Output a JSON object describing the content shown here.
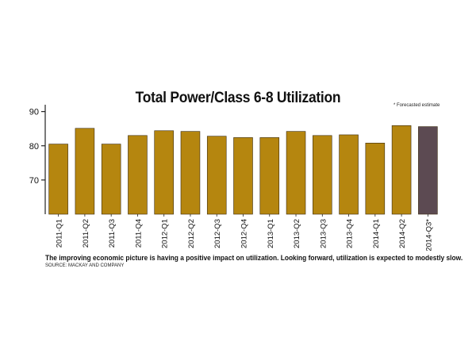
{
  "chart_data": {
    "type": "bar",
    "title": "Total Power/Class 6-8 Utilization",
    "xlabel": "",
    "ylabel": "",
    "ylim": [
      60,
      92
    ],
    "yticks": [
      70,
      80,
      90
    ],
    "grid": false,
    "categories": [
      "2011-Q1",
      "2011-Q2",
      "2011-Q3",
      "2011-Q4",
      "2012-Q1",
      "2012-Q2",
      "2012-Q3",
      "2012-Q4",
      "2013-Q1",
      "2013-Q2",
      "2013-Q3",
      "2013-Q4",
      "2014-Q1",
      "2014-Q2",
      "2014-Q3*"
    ],
    "values": [
      80.5,
      85.1,
      80.5,
      83.0,
      84.4,
      84.2,
      82.8,
      82.4,
      82.4,
      84.2,
      83.0,
      83.2,
      80.8,
      85.9,
      85.6
    ],
    "forecast": [
      false,
      false,
      false,
      false,
      false,
      false,
      false,
      false,
      false,
      false,
      false,
      false,
      false,
      false,
      true
    ],
    "colors": {
      "actual": "#b5860f",
      "forecast": "#5c4a52",
      "outline": "#3a2a10",
      "axis": "#222222"
    },
    "footnote": "* Forecasted estimate",
    "caption": "The improving economic picture is having a positive impact on utilization. Looking forward, utilization is expected to modestly slow.",
    "source": "SOURCE: MACKAY AND COMPANY"
  }
}
